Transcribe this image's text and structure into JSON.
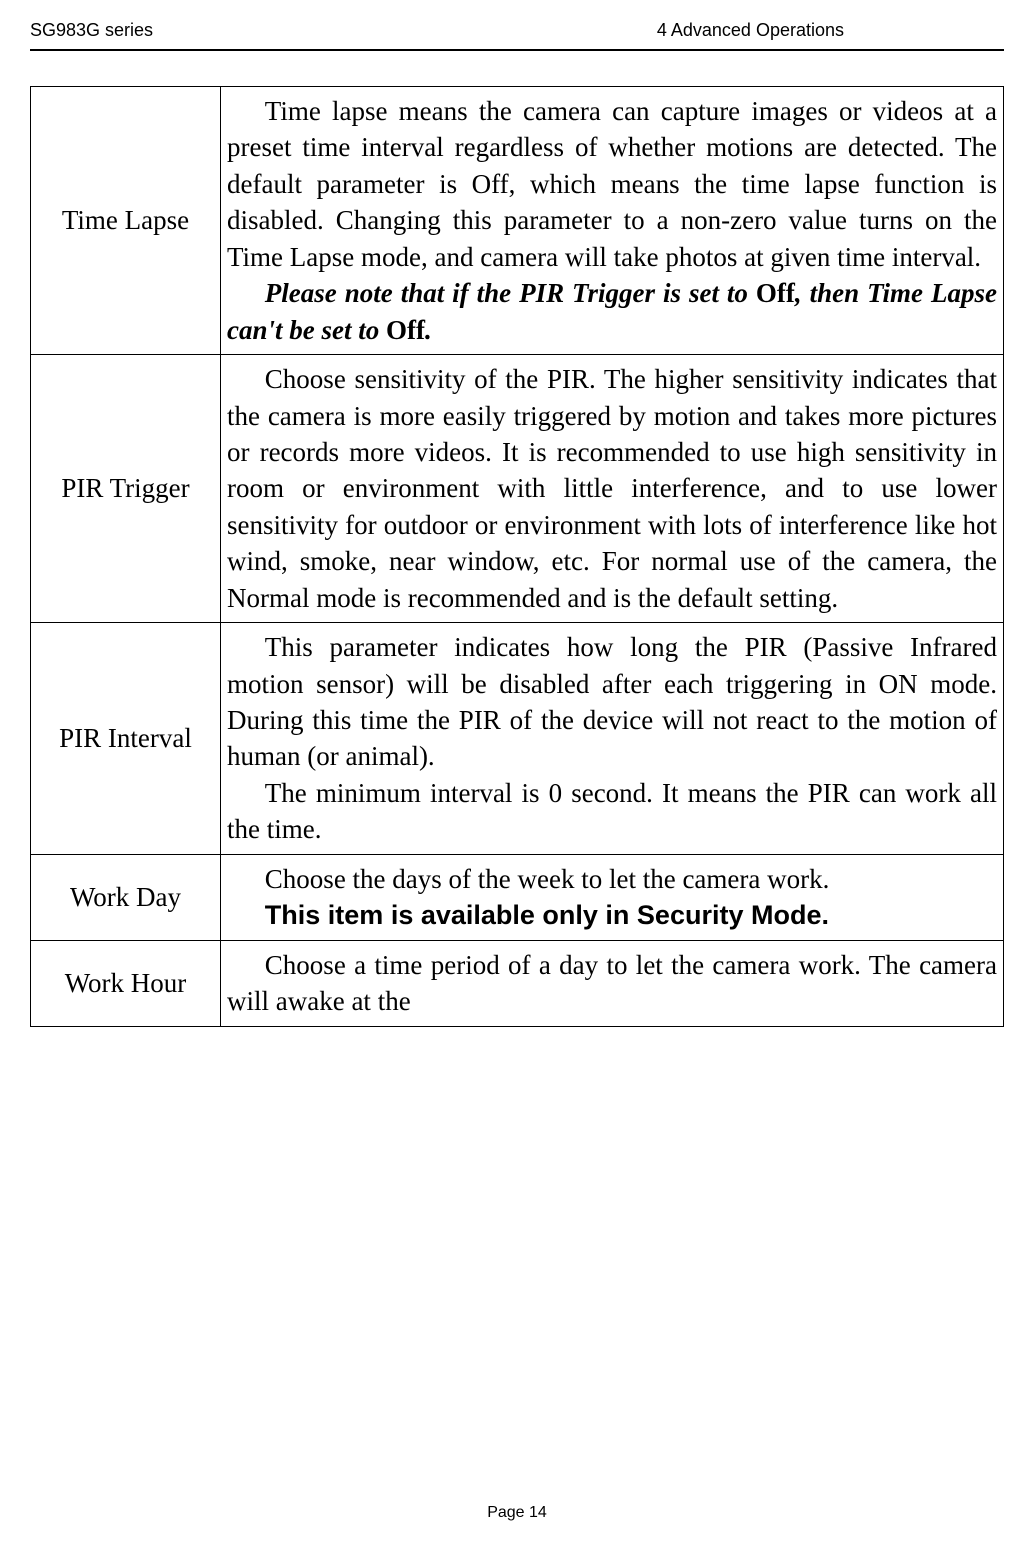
{
  "header": {
    "series": "SG983G series",
    "section": "4 Advanced Operations"
  },
  "rows": [
    {
      "label": "Time Lapse",
      "paragraphs": [
        {
          "text": "Time lapse means the camera can capture images or videos at a preset time interval regardless of whether motions are detected. The default parameter is Off, which means the time lapse function is disabled. Changing this parameter to a non-zero value turns on the Time Lapse mode, and camera will take photos at given time interval.",
          "style": "normal"
        },
        {
          "parts": [
            {
              "text": "Please note that if the PIR Trigger is set to ",
              "style": "bold-italic"
            },
            {
              "text": "Off",
              "style": "bold"
            },
            {
              "text": ", then Time Lapse can't be set to ",
              "style": "bold-italic"
            },
            {
              "text": "Off",
              "style": "bold"
            },
            {
              "text": ".",
              "style": "bold-italic"
            }
          ]
        }
      ]
    },
    {
      "label": "PIR Trigger",
      "paragraphs": [
        {
          "text": "Choose sensitivity of the PIR. The higher sensitivity indicates that the camera is more easily triggered by motion and takes more pictures or records more videos. It is recommended to use high sensitivity in room or environment with little interference, and to use lower sensitivity for outdoor or environment with lots of interference like hot wind, smoke, near window, etc. For normal use of the camera, the Normal mode is recommended and is the default setting.",
          "style": "normal"
        }
      ]
    },
    {
      "label": "PIR Interval",
      "paragraphs": [
        {
          "text": "This parameter indicates how long the PIR (Passive Infrared motion sensor) will be disabled after each triggering in ON mode. During this time the PIR of the device will not react to the motion of human (or animal).",
          "style": "normal"
        },
        {
          "text": "The minimum interval is 0 second. It means the PIR can work all the time.",
          "style": "normal"
        }
      ]
    },
    {
      "label": "Work Day",
      "paragraphs": [
        {
          "text": "Choose the days of the week to let the camera work.",
          "style": "normal"
        },
        {
          "text": "This item is available only in Security Mode.",
          "style": "bold-noindent"
        }
      ]
    },
    {
      "label": "Work Hour",
      "paragraphs": [
        {
          "text": "Choose a time period of a day to let the camera work. The camera will awake at the",
          "style": "normal"
        }
      ]
    }
  ],
  "footer": {
    "page_label": "Page 14"
  }
}
